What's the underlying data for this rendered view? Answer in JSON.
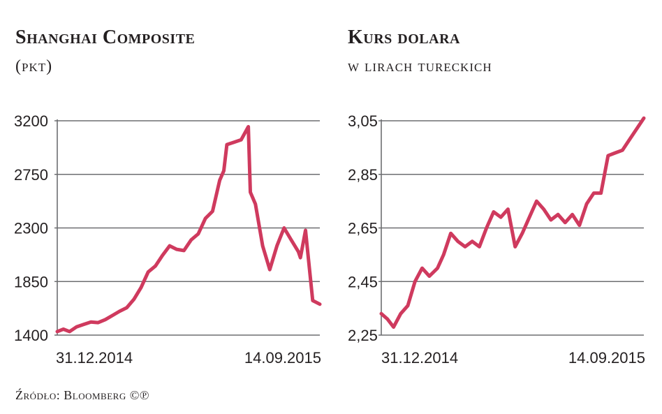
{
  "charts": [
    {
      "title": "Shanghai Composite",
      "subtitle": "(pkt)"
    },
    {
      "title": "Kurs dolara",
      "subtitle": "w lirach tureckich"
    }
  ],
  "source": "Źródło: Bloomberg ©℗",
  "colors": {
    "line": "#cf3a5e",
    "grid": "#6d6e71",
    "text": "#231f20"
  },
  "chart_data": [
    {
      "type": "line",
      "title": "Shanghai Composite",
      "subtitle": "(pkt)",
      "ylim": [
        1400,
        3200
      ],
      "yticks": [
        "3200",
        "2750",
        "2300",
        "1850",
        "1400"
      ],
      "ytick_values": [
        3200,
        2750,
        2300,
        1850,
        1400
      ],
      "xtick_labels": [
        "31.12.2014",
        "14.09.2015"
      ],
      "x_range": [
        "2014-12-31",
        "2015-09-14"
      ],
      "grid": true,
      "series": [
        {
          "x": [
            "2014-12-31",
            "2015-01-06",
            "2015-01-12",
            "2015-01-19",
            "2015-01-26",
            "2015-02-02",
            "2015-02-09",
            "2015-02-16",
            "2015-02-24",
            "2015-03-02",
            "2015-03-09",
            "2015-03-16",
            "2015-03-23",
            "2015-03-30",
            "2015-04-06",
            "2015-04-13",
            "2015-04-20",
            "2015-04-27",
            "2015-05-04",
            "2015-05-11",
            "2015-05-18",
            "2015-05-25",
            "2015-06-01",
            "2015-06-08",
            "2015-06-12",
            "2015-06-15",
            "2015-06-22",
            "2015-06-29",
            "2015-07-06",
            "2015-07-08",
            "2015-07-13",
            "2015-07-20",
            "2015-07-27",
            "2015-08-03",
            "2015-08-10",
            "2015-08-17",
            "2015-08-24",
            "2015-08-26",
            "2015-08-31",
            "2015-09-07",
            "2015-09-14"
          ],
          "values": [
            1430,
            1450,
            1430,
            1470,
            1490,
            1510,
            1505,
            1530,
            1570,
            1600,
            1630,
            1700,
            1800,
            1930,
            1980,
            2070,
            2150,
            2120,
            2110,
            2200,
            2250,
            2380,
            2440,
            2700,
            2780,
            3000,
            3020,
            3040,
            3150,
            2600,
            2500,
            2150,
            1950,
            2150,
            2300,
            2200,
            2100,
            2050,
            2280,
            1690,
            1660
          ]
        }
      ]
    },
    {
      "type": "line",
      "title": "Kurs dolara",
      "subtitle": "w lirach tureckich",
      "ylim": [
        2.25,
        3.05
      ],
      "yticks": [
        "3,05",
        "2,85",
        "2,65",
        "2,45",
        "2,25"
      ],
      "ytick_values": [
        3.05,
        2.85,
        2.65,
        2.45,
        2.25
      ],
      "xtick_labels": [
        "31.12.2014",
        "14.09.2015"
      ],
      "x_range": [
        "2014-12-31",
        "2015-09-14"
      ],
      "grid": true,
      "series": [
        {
          "x": [
            "2014-12-31",
            "2015-01-06",
            "2015-01-12",
            "2015-01-19",
            "2015-01-26",
            "2015-02-02",
            "2015-02-09",
            "2015-02-16",
            "2015-02-24",
            "2015-03-02",
            "2015-03-09",
            "2015-03-16",
            "2015-03-23",
            "2015-03-30",
            "2015-04-06",
            "2015-04-13",
            "2015-04-20",
            "2015-04-27",
            "2015-05-04",
            "2015-05-11",
            "2015-05-18",
            "2015-05-25",
            "2015-06-01",
            "2015-06-08",
            "2015-06-15",
            "2015-06-22",
            "2015-06-29",
            "2015-07-06",
            "2015-07-13",
            "2015-07-20",
            "2015-07-27",
            "2015-08-03",
            "2015-08-10",
            "2015-08-17",
            "2015-08-24",
            "2015-08-31",
            "2015-09-07",
            "2015-09-14"
          ],
          "values": [
            2.33,
            2.31,
            2.28,
            2.33,
            2.36,
            2.45,
            2.5,
            2.47,
            2.5,
            2.55,
            2.63,
            2.6,
            2.58,
            2.6,
            2.58,
            2.65,
            2.71,
            2.69,
            2.72,
            2.58,
            2.63,
            2.69,
            2.75,
            2.72,
            2.68,
            2.7,
            2.67,
            2.7,
            2.66,
            2.74,
            2.78,
            2.78,
            2.92,
            2.93,
            2.94,
            2.98,
            3.02,
            3.06
          ]
        }
      ]
    }
  ]
}
